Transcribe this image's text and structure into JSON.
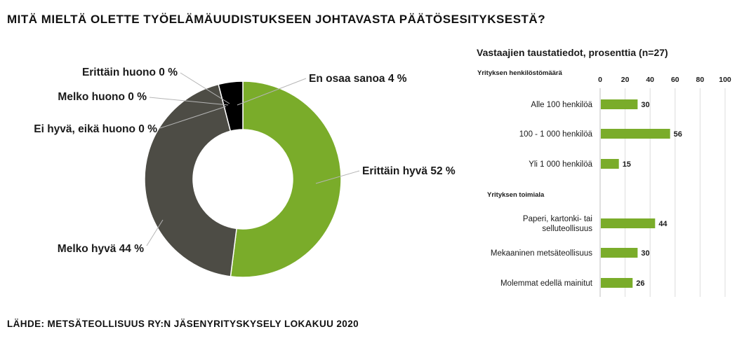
{
  "header": {
    "title": "MITÄ MIELTÄ OLETTE TYÖELÄMÄUUDISTUKSEEN JOHTAVASTA PÄÄTÖSESITYKSESTÄ?"
  },
  "footer": {
    "source": "LÄHDE: METSÄTEOLLISUUS RY:N JÄSENYRITYSKYSELY LOKAKUU 2020"
  },
  "chart_data": [
    {
      "type": "pie",
      "variant": "donut",
      "slices": [
        {
          "label": "Erittäin hyvä 52 %",
          "name": "Erittäin hyvä",
          "value": 52,
          "color": "#7aac2a"
        },
        {
          "label": "Melko hyvä 44 %",
          "name": "Melko hyvä",
          "value": 44,
          "color": "#4d4c45"
        },
        {
          "label": "Ei hyvä, eikä huono 0 %",
          "name": "Ei hyvä, eikä huono",
          "value": 0,
          "color": "#8c8c8c"
        },
        {
          "label": "Melko huono 0 %",
          "name": "Melko huono",
          "value": 0,
          "color": "#a6a6a6"
        },
        {
          "label": "Erittäin huono 0 %",
          "name": "Erittäin huono",
          "value": 0,
          "color": "#bfbfbf"
        },
        {
          "label": "En osaa sanoa 4 %",
          "name": "En osaa sanoa",
          "value": 4,
          "color": "#000000"
        }
      ]
    },
    {
      "type": "bar",
      "orientation": "horizontal",
      "title": "Vastaajien taustatiedot, prosenttia (n=27)",
      "xlim": [
        0,
        100
      ],
      "xticks": [
        0,
        20,
        40,
        60,
        80,
        100
      ],
      "color": "#7aac2a",
      "groups": [
        {
          "heading": "Yrityksen henkilöstömäärä",
          "items": [
            {
              "label": [
                "Alle 100 henkilöä"
              ],
              "value": 30
            },
            {
              "label": [
                "100 - 1 000 henkilöä"
              ],
              "value": 56
            },
            {
              "label": [
                "Yli 1 000 henkilöä"
              ],
              "value": 15
            }
          ]
        },
        {
          "heading": "Yrityksen toimiala",
          "items": [
            {
              "label": [
                "Paperi, kartonki- tai",
                "selluteollisuus"
              ],
              "value": 44
            },
            {
              "label": [
                "Mekaaninen metsäteollisuus"
              ],
              "value": 30
            },
            {
              "label": [
                "Molemmat edellä mainitut"
              ],
              "value": 26
            }
          ]
        }
      ]
    }
  ]
}
